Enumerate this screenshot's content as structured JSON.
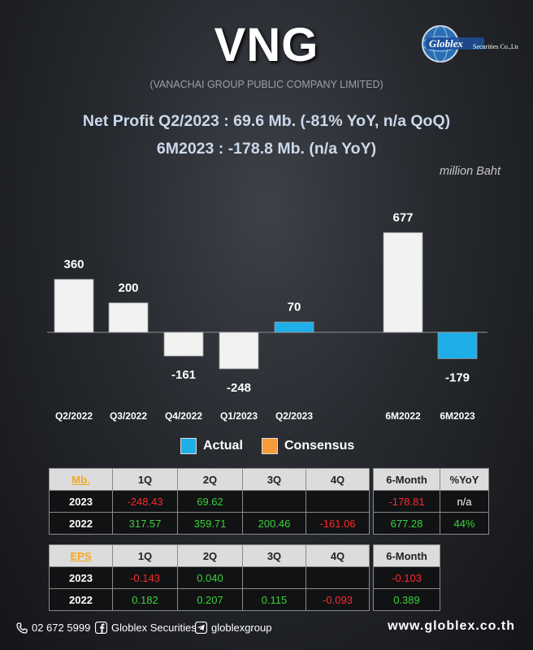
{
  "header": {
    "ticker": "VNG",
    "company": "(VANACHAI GROUP PUBLIC COMPANY LIMITED)",
    "logo_text": "Globlex",
    "logo_sub": "Securities Co.,Ltd.",
    "headline_1": "Net Profit  Q2/2023 : 69.6 Mb. (-81% YoY, n/a QoQ)",
    "headline_2": "6M2023 : -178.8 Mb. (n/a YoY)",
    "unit": "million Baht"
  },
  "chart_data": {
    "type": "bar",
    "categories": [
      "Q2/2022",
      "Q3/2022",
      "Q4/2022",
      "Q1/2023",
      "Q2/2023",
      "6M2022",
      "6M2023"
    ],
    "series": [
      {
        "name": "",
        "values": [
          360,
          200,
          -161,
          -248,
          70,
          677,
          -179
        ],
        "data_labels": [
          "360",
          "200",
          "-161",
          "-248",
          "70",
          "677",
          "-179"
        ]
      }
    ],
    "bar_colors": [
      "#f2f2f2",
      "#f2f2f2",
      "#f2f2f2",
      "#f2f2f2",
      "#1eaee8",
      "#f2f2f2",
      "#1eaee8"
    ],
    "legend": [
      {
        "label": "Actual",
        "color": "#1eaee8"
      },
      {
        "label": "Consensus",
        "color": "#f79a3a"
      }
    ],
    "legend_position": "bottom",
    "grid": false,
    "ylim": [
      -260,
      700
    ]
  },
  "tables": {
    "mb": {
      "corner": "Mb.",
      "headers": [
        "1Q",
        "2Q",
        "3Q",
        "4Q"
      ],
      "rows": [
        {
          "year": "2023",
          "cells": [
            {
              "v": "-248.43",
              "c": "neg"
            },
            {
              "v": "69.62",
              "c": "pos"
            },
            {
              "v": "",
              "c": "neu"
            },
            {
              "v": "",
              "c": "neu"
            }
          ]
        },
        {
          "year": "2022",
          "cells": [
            {
              "v": "317.57",
              "c": "pos"
            },
            {
              "v": "359.71",
              "c": "pos"
            },
            {
              "v": "200.46",
              "c": "pos"
            },
            {
              "v": "-161.06",
              "c": "neg"
            }
          ]
        }
      ]
    },
    "mb_half": {
      "headers": [
        "6-Month",
        "%YoY"
      ],
      "rows": [
        [
          {
            "v": "-178.81",
            "c": "neg"
          },
          {
            "v": "n/a",
            "c": "neu"
          }
        ],
        [
          {
            "v": "677.28",
            "c": "pos"
          },
          {
            "v": "44%",
            "c": "pos"
          }
        ]
      ]
    },
    "eps": {
      "corner": "EPS",
      "headers": [
        "1Q",
        "2Q",
        "3Q",
        "4Q"
      ],
      "rows": [
        {
          "year": "2023",
          "cells": [
            {
              "v": "-0.143",
              "c": "neg"
            },
            {
              "v": "0.040",
              "c": "pos"
            },
            {
              "v": "",
              "c": "neu"
            },
            {
              "v": "",
              "c": "neu"
            }
          ]
        },
        {
          "year": "2022",
          "cells": [
            {
              "v": "0.182",
              "c": "pos"
            },
            {
              "v": "0.207",
              "c": "pos"
            },
            {
              "v": "0.115",
              "c": "pos"
            },
            {
              "v": "-0.093",
              "c": "neg"
            }
          ]
        }
      ]
    },
    "eps_half": {
      "headers": [
        "6-Month"
      ],
      "rows": [
        [
          {
            "v": "-0.103",
            "c": "neg"
          }
        ],
        [
          {
            "v": "0.389",
            "c": "pos"
          }
        ]
      ]
    }
  },
  "footer": {
    "phone": "02 672 5999",
    "facebook": "Globlex Securities",
    "telegram": "globlexgroup",
    "website": "www.globlex.co.th",
    "icons": [
      "phone-icon",
      "facebook-icon",
      "telegram-icon"
    ]
  }
}
